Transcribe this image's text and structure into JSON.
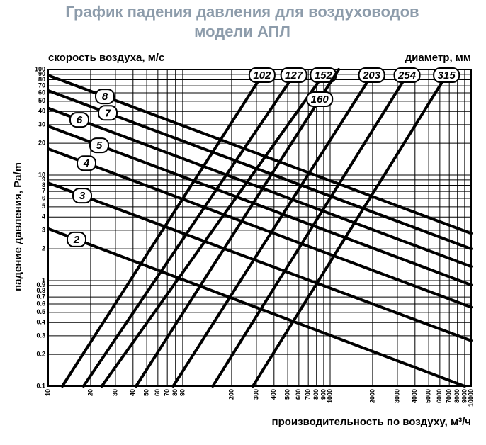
{
  "chart_data": {
    "type": "line",
    "title": [
      "График падения давления для воздуховодов",
      "модели АПЛ"
    ],
    "velocity_label": "скорость воздуха, м/с",
    "diameter_label": "диаметр, мм",
    "ylabel": "падение давления, Pa/m",
    "xlabel": "производительность по воздуху, м³/ч",
    "xlog": true,
    "ylog": true,
    "grid": true,
    "xlim": [
      10,
      10000
    ],
    "ylim": [
      0.1,
      100
    ],
    "xticks": [
      10,
      20,
      30,
      40,
      50,
      60,
      70,
      80,
      90,
      200,
      300,
      400,
      500,
      600,
      700,
      800,
      900,
      1000,
      2000,
      3000,
      4000,
      5000,
      6000,
      7000,
      8000,
      9000,
      10000
    ],
    "yticks": [
      0.1,
      0.2,
      0.3,
      0.4,
      0.5,
      0.6,
      0.7,
      0.8,
      0.9,
      1,
      2,
      3,
      4,
      5,
      6,
      7,
      8,
      9,
      10,
      20,
      30,
      40,
      50,
      60,
      70,
      80,
      90,
      100
    ],
    "series": [
      {
        "name": "8",
        "color": "#000000",
        "x": [
          10,
          10000
        ],
        "values": [
          88,
          2.8
        ]
      },
      {
        "name": "7",
        "color": "#000000",
        "x": [
          10,
          10000
        ],
        "values": [
          63,
          2.0
        ]
      },
      {
        "name": "6",
        "color": "#000000",
        "x": [
          10,
          10000
        ],
        "values": [
          43,
          1.36
        ]
      },
      {
        "name": "5",
        "color": "#000000",
        "x": [
          10,
          10000
        ],
        "values": [
          29,
          0.91
        ]
      },
      {
        "name": "4",
        "color": "#000000",
        "x": [
          10,
          10000
        ],
        "values": [
          17.7,
          0.56
        ]
      },
      {
        "name": "3",
        "color": "#000000",
        "x": [
          10,
          10000
        ],
        "values": [
          8.4,
          0.27
        ]
      },
      {
        "name": "2",
        "color": "#000000",
        "x": [
          10,
          9000
        ],
        "values": [
          3.1,
          0.1
        ]
      },
      {
        "name": "102",
        "color": "#000000",
        "x": [
          12.6,
          349
        ],
        "values": [
          0.1,
          100
        ]
      },
      {
        "name": "127",
        "color": "#000000",
        "x": [
          17.8,
          588
        ],
        "values": [
          0.1,
          100
        ]
      },
      {
        "name": "152",
        "color": "#000000",
        "x": [
          24,
          955
        ],
        "values": [
          0.1,
          100
        ]
      },
      {
        "name": "160",
        "color": "#000000",
        "x": [
          42,
          1150
        ],
        "values": [
          0.1,
          100
        ]
      },
      {
        "name": "203",
        "color": "#000000",
        "x": [
          77,
          2090
        ],
        "values": [
          0.1,
          100
        ]
      },
      {
        "name": "254",
        "color": "#000000",
        "x": [
          147,
          3720
        ],
        "values": [
          0.1,
          100
        ]
      },
      {
        "name": "315",
        "color": "#000000",
        "x": [
          283,
          7080
        ],
        "values": [
          0.1,
          100
        ]
      }
    ]
  }
}
